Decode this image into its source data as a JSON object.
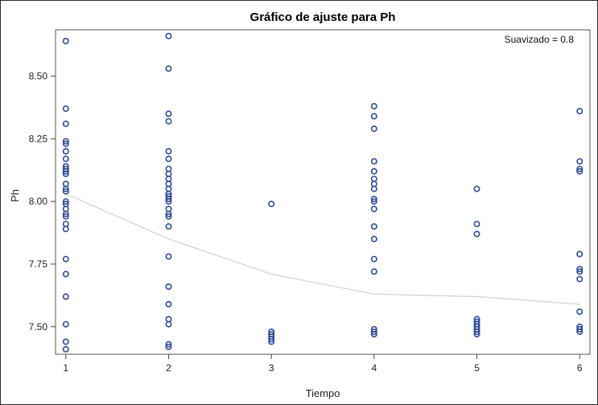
{
  "chart_data": {
    "type": "scatter",
    "title": "Gráfico de ajuste para Ph",
    "xlabel": "Tiempo",
    "ylabel": "Ph",
    "annotation": "Suavizado = 0.8",
    "xlim": [
      0.9,
      6.1
    ],
    "ylim": [
      7.39,
      8.685
    ],
    "x_ticks": [
      1,
      2,
      3,
      4,
      5,
      6
    ],
    "y_ticks": [
      7.5,
      7.75,
      8.0,
      8.25,
      8.5
    ],
    "y_tick_labels": [
      "7.50",
      "7.75",
      "8.00",
      "8.25",
      "8.50"
    ],
    "grid": false,
    "marker_color": "#2f4b9a",
    "smooth_line_color": "#cfcfd6",
    "points": [
      {
        "x": 1,
        "y": [
          8.64,
          8.37,
          8.31,
          8.24,
          8.23,
          8.2,
          8.17,
          8.14,
          8.13,
          8.12,
          8.11,
          8.07,
          8.05,
          8.04,
          8.0,
          7.99,
          7.97,
          7.95,
          7.94,
          7.91,
          7.89,
          7.77,
          7.71,
          7.62,
          7.51,
          7.44,
          7.41
        ]
      },
      {
        "x": 2,
        "y": [
          8.66,
          8.53,
          8.35,
          8.32,
          8.2,
          8.17,
          8.13,
          8.11,
          8.09,
          8.07,
          8.05,
          8.03,
          8.02,
          8.01,
          8.0,
          7.97,
          7.95,
          7.94,
          7.9,
          7.78,
          7.66,
          7.59,
          7.53,
          7.51,
          7.43,
          7.42
        ]
      },
      {
        "x": 3,
        "y": [
          7.99,
          7.48,
          7.47,
          7.46,
          7.45,
          7.44
        ]
      },
      {
        "x": 4,
        "y": [
          8.38,
          8.34,
          8.29,
          8.16,
          8.12,
          8.09,
          8.07,
          8.05,
          8.01,
          8.0,
          7.97,
          7.9,
          7.85,
          7.77,
          7.72,
          7.49,
          7.48,
          7.47
        ]
      },
      {
        "x": 5,
        "y": [
          8.05,
          7.91,
          7.87,
          7.53,
          7.52,
          7.51,
          7.5,
          7.49,
          7.48,
          7.47
        ]
      },
      {
        "x": 6,
        "y": [
          8.36,
          8.16,
          8.13,
          8.12,
          7.79,
          7.73,
          7.72,
          7.69,
          7.56,
          7.5,
          7.49,
          7.48
        ]
      }
    ],
    "smooth_line": {
      "x": [
        1,
        2,
        3,
        4,
        5,
        6
      ],
      "y": [
        8.03,
        7.85,
        7.71,
        7.63,
        7.62,
        7.59
      ]
    }
  }
}
